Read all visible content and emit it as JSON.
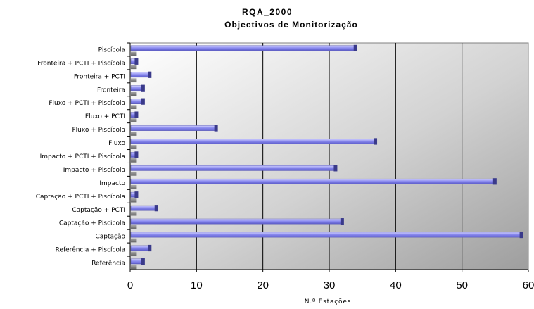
{
  "chart_data": {
    "type": "bar",
    "orientation": "horizontal",
    "title": "RQA_2000",
    "subtitle": "Objectivos de Monitorização",
    "xlabel": "N.º Estações",
    "ylabel": "",
    "xlim": [
      0,
      60
    ],
    "xticks": [
      "0",
      "10",
      "20",
      "30",
      "40",
      "50",
      "60"
    ],
    "grid": true,
    "categories": [
      "Referência",
      "Referência + Piscícola",
      "Captação",
      "Captação + Piscicola",
      "Captação + PCTI",
      "Captação + PCTI + Piscícola",
      "Impacto",
      "Impacto + Piscícola",
      "Impacto + PCTI + Piscícola",
      "Fluxo",
      "Fluxo + Piscícola",
      "Fluxo + PCTI",
      "Fluxo + PCTI + Piscícola",
      "Fronteira",
      "Fronteira + PCTI",
      "Fronteira + PCTI + Piscícola",
      "Piscícola"
    ],
    "series": [
      {
        "values": [
          2,
          3,
          59,
          32,
          4,
          1,
          55,
          31,
          1,
          37,
          13,
          1,
          2,
          2,
          3,
          1,
          34
        ],
        "color": "#8c8cf0"
      },
      {
        "values": [
          1,
          1,
          1,
          1,
          1,
          1,
          1,
          1,
          1,
          1,
          1,
          1,
          1,
          1,
          1,
          1,
          1
        ],
        "color": "#7a7a7a"
      }
    ]
  }
}
